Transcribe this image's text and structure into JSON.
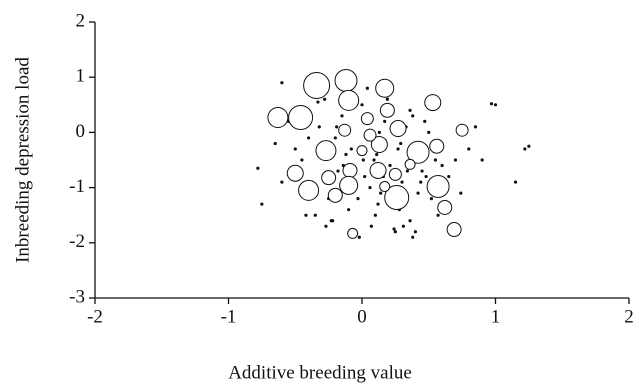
{
  "chart_data": {
    "type": "scatter",
    "x_label": "Additive breeding value",
    "y_label": "Inbreeding depression load",
    "xlim": [
      -2,
      2
    ],
    "xticks": [
      -2,
      -1,
      0,
      1,
      2
    ],
    "ylim": [
      -3,
      2
    ],
    "yticks": [
      -3,
      -2,
      -1,
      0,
      1,
      2
    ],
    "grid": false,
    "series": [
      {
        "color": "#111111",
        "marker": "dot",
        "x": [
          0.05,
          -0.12,
          0.21,
          0.33,
          -0.25,
          0.1,
          -0.4,
          0.48,
          0.0,
          0.15,
          -0.18,
          0.28,
          -0.05,
          0.38,
          -0.32,
          0.55,
          0.07,
          -0.22,
          0.42,
          0.19,
          -0.08,
          0.3,
          -0.45,
          0.63,
          0.12,
          -0.15,
          0.25,
          -0.35,
          0.5,
          0.02,
          -0.28,
          0.36,
          0.09,
          -0.5,
          0.6,
          0.17,
          -0.02,
          0.44,
          -0.2,
          0.27,
          -0.1,
          0.7,
          0.14,
          -0.38,
          0.52,
          0.04,
          -0.27,
          0.34,
          -0.6,
          0.22,
          0.8,
          -0.14,
          0.4,
          -0.03,
          0.65,
          0.11,
          -0.42,
          0.29,
          0.47,
          -0.19,
          0.06,
          0.36,
          -0.55,
          0.2,
          0.74,
          -0.07,
          0.31,
          -0.3,
          0.57,
          0.16,
          -0.65,
          0.45,
          0.01,
          0.85,
          -0.23,
          0.26,
          0.9,
          -0.1,
          0.38,
          0.13,
          1.22,
          1.25,
          1.15,
          1.0,
          0.97,
          -0.75,
          -0.78,
          -0.6,
          0.24,
          -0.33
        ],
        "values": [
          0.2,
          -0.4,
          -0.6,
          0.1,
          -1.2,
          -1.5,
          -0.1,
          -0.8,
          0.5,
          -0.2,
          -0.7,
          -1.4,
          -1.0,
          0.3,
          0.1,
          -0.5,
          -1.7,
          -1.6,
          -1.1,
          0.6,
          -0.3,
          -0.9,
          -0.5,
          -1.0,
          -1.3,
          0.3,
          -1.8,
          -1.5,
          0.0,
          -0.8,
          0.6,
          -1.6,
          -0.5,
          -0.3,
          -0.6,
          0.2,
          -1.9,
          -0.9,
          -0.1,
          -0.3,
          -1.4,
          -0.5,
          -1.1,
          -1.0,
          -1.2,
          0.8,
          -1.7,
          -0.7,
          -0.9,
          0.4,
          -0.3,
          -0.6,
          -1.8,
          -1.2,
          -0.8,
          -0.4,
          -1.5,
          -0.2,
          0.2,
          0.1,
          -1.0,
          0.4,
          0.2,
          -1.3,
          -1.1,
          0.7,
          -1.7,
          -0.4,
          -1.5,
          -0.8,
          -0.2,
          -0.7,
          -0.5,
          0.1,
          -1.6,
          -1.2,
          -0.5,
          -0.9,
          -1.9,
          0.0,
          -0.3,
          -0.25,
          -0.9,
          0.5,
          0.52,
          -1.3,
          -0.65,
          0.9,
          -1.75,
          0.55
        ]
      },
      {
        "color": "#111111",
        "marker": "circle",
        "x": [
          -0.34,
          -0.12,
          -0.1,
          0.17,
          -0.46,
          -0.63,
          0.53,
          0.27,
          -0.27,
          0.42,
          0.13,
          0.56,
          -0.09,
          0.12,
          -0.1,
          -0.4,
          0.26,
          0.57,
          -0.5,
          -0.25,
          -0.2,
          0.62,
          0.69,
          -0.07,
          0.75,
          0.06,
          0.19,
          -0.13,
          0.04,
          0.25,
          0.36,
          0.0,
          0.17
        ],
        "values": [
          0.85,
          0.94,
          0.58,
          0.8,
          0.27,
          0.27,
          0.54,
          0.07,
          -0.33,
          -0.36,
          -0.22,
          -0.25,
          -0.69,
          -0.69,
          -0.96,
          -1.05,
          -1.18,
          -0.98,
          -0.74,
          -0.82,
          -1.14,
          -1.36,
          -1.76,
          -1.83,
          0.04,
          -0.05,
          0.4,
          0.04,
          0.25,
          -0.76,
          -0.58,
          -0.33,
          -0.98
        ],
        "sizes": [
          13,
          11,
          10,
          9,
          12,
          10,
          8,
          8,
          10,
          11,
          8,
          7,
          7,
          8,
          9,
          10,
          12,
          11,
          8,
          7,
          7,
          7,
          7,
          5,
          6,
          6,
          7,
          6,
          6,
          6,
          5,
          5,
          5
        ]
      }
    ]
  }
}
